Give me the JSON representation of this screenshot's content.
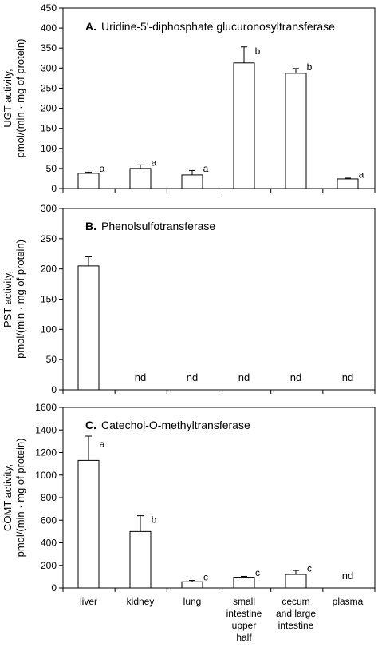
{
  "chart_data": [
    {
      "type": "bar",
      "panel_letter": "A.",
      "title": "Uridine-5'-diphosphate glucuronosyltransferase",
      "ylabel_lines": [
        "UGT activity,",
        "pmol/(min · mg of protein)"
      ],
      "ylim": [
        0,
        450
      ],
      "yticks": [
        0,
        50,
        100,
        150,
        200,
        250,
        300,
        350,
        400,
        450
      ],
      "categories": [
        "liver",
        "kidney",
        "lung",
        "small intestine upper half",
        "cecum and large intestine",
        "plasma"
      ],
      "values": [
        38,
        50,
        34,
        313,
        287,
        24
      ],
      "errors": [
        3,
        9,
        11,
        40,
        12,
        2
      ],
      "labels": [
        "a",
        "a",
        "a",
        "b",
        "b",
        "a"
      ]
    },
    {
      "type": "bar",
      "panel_letter": "B.",
      "title": "Phenolsulfotransferase",
      "ylabel_lines": [
        "PST activity,",
        "pmol/(min · mg of protein)"
      ],
      "ylim": [
        0,
        300
      ],
      "yticks": [
        0,
        50,
        100,
        150,
        200,
        250,
        300
      ],
      "categories": [
        "liver",
        "kidney",
        "lung",
        "small intestine upper half",
        "cecum and large intestine",
        "plasma"
      ],
      "values": [
        205,
        null,
        null,
        null,
        null,
        null
      ],
      "errors": [
        15,
        null,
        null,
        null,
        null,
        null
      ],
      "labels": [
        "",
        "nd",
        "nd",
        "nd",
        "nd",
        "nd"
      ]
    },
    {
      "type": "bar",
      "panel_letter": "C.",
      "title": "Catechol-O-methyltransferase",
      "ylabel_lines": [
        "COMT activity,",
        "pmol/(min · mg of protein)"
      ],
      "ylim": [
        0,
        1600
      ],
      "yticks": [
        0,
        200,
        400,
        600,
        800,
        1000,
        1200,
        1400,
        1600
      ],
      "categories": [
        "liver",
        "kidney",
        "lung",
        "small intestine upper half",
        "cecum and large intestine",
        "plasma"
      ],
      "values": [
        1130,
        500,
        55,
        95,
        120,
        null
      ],
      "errors": [
        215,
        140,
        12,
        8,
        35,
        null
      ],
      "labels": [
        "a",
        "b",
        "c",
        "c",
        "c",
        "nd"
      ]
    }
  ],
  "x_axis": {
    "tick_labels": [
      [
        "liver"
      ],
      [
        "kidney"
      ],
      [
        "lung"
      ],
      [
        "small",
        "intestine",
        "upper",
        "half"
      ],
      [
        "cecum",
        "and large",
        "intestine"
      ],
      [
        "plasma"
      ]
    ]
  }
}
